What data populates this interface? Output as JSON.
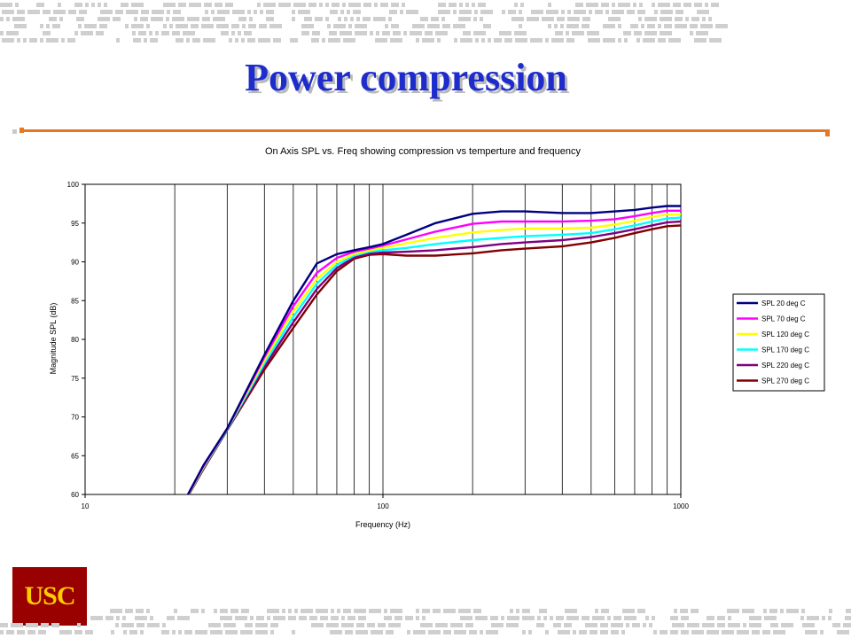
{
  "slide": {
    "title": "Power compression",
    "logo_text": "USC",
    "colors": {
      "title": "#1e2ccc",
      "accent_rule": "#e87722",
      "logo_bg": "#990000",
      "logo_text": "#ffcc00",
      "pattern": "#cfcfcf"
    }
  },
  "chart_data": {
    "type": "line",
    "title": "On Axis SPL vs. Freq showing compression vs temperture and frequency",
    "xlabel": "Frequency (Hz)",
    "ylabel": "Magnitude SPL (dB)",
    "x_scale": "log",
    "xlim": [
      10,
      1000
    ],
    "ylim": [
      60,
      100
    ],
    "x_ticks": [
      "10",
      "100",
      "1000"
    ],
    "y_ticks": [
      "60",
      "65",
      "70",
      "75",
      "80",
      "85",
      "90",
      "95",
      "100"
    ],
    "grid": "vertical log gridlines",
    "legend_position": "right",
    "x": [
      20,
      22,
      25,
      30,
      40,
      50,
      60,
      70,
      80,
      90,
      100,
      120,
      150,
      200,
      250,
      300,
      400,
      500,
      600,
      700,
      800,
      900,
      1000
    ],
    "series": [
      {
        "name": "SPL 20 deg C",
        "color": "#000080",
        "values": [
          57.5,
          59.8,
          63.8,
          68.5,
          78.0,
          85.0,
          89.8,
          91.0,
          91.5,
          91.9,
          92.3,
          93.5,
          95.0,
          96.2,
          96.5,
          96.5,
          96.3,
          96.3,
          96.5,
          96.7,
          97.0,
          97.2,
          97.2
        ]
      },
      {
        "name": "SPL 70 deg C",
        "color": "#ff00ff",
        "values": [
          57.5,
          59.8,
          63.7,
          68.5,
          77.7,
          84.3,
          88.6,
          90.5,
          91.3,
          91.7,
          92.1,
          92.9,
          93.9,
          94.9,
          95.2,
          95.2,
          95.2,
          95.3,
          95.5,
          95.9,
          96.3,
          96.6,
          96.6
        ]
      },
      {
        "name": "SPL 120 deg C",
        "color": "#ffff00",
        "values": [
          57.4,
          59.7,
          63.6,
          68.5,
          77.3,
          83.6,
          87.8,
          90.0,
          91.0,
          91.5,
          91.8,
          92.4,
          93.1,
          93.8,
          94.1,
          94.3,
          94.3,
          94.4,
          94.8,
          95.3,
          95.8,
          96.1,
          96.1
        ]
      },
      {
        "name": "SPL 170 deg C",
        "color": "#00ffff",
        "values": [
          57.4,
          59.7,
          63.5,
          68.4,
          76.9,
          82.9,
          87.2,
          89.6,
          90.8,
          91.3,
          91.5,
          91.8,
          92.3,
          92.8,
          93.1,
          93.3,
          93.5,
          93.7,
          94.2,
          94.7,
          95.2,
          95.6,
          95.7
        ]
      },
      {
        "name": "SPL 220 deg C",
        "color": "#800080",
        "values": [
          57.3,
          59.6,
          63.4,
          68.4,
          76.5,
          82.2,
          86.5,
          89.2,
          90.6,
          91.1,
          91.2,
          91.3,
          91.5,
          91.9,
          92.3,
          92.5,
          92.8,
          93.2,
          93.7,
          94.2,
          94.7,
          95.1,
          95.2
        ]
      },
      {
        "name": "SPL 270 deg C",
        "color": "#800000",
        "values": [
          57.3,
          59.6,
          63.3,
          68.3,
          76.1,
          81.5,
          85.8,
          88.8,
          90.4,
          90.9,
          91.0,
          90.8,
          90.8,
          91.1,
          91.5,
          91.7,
          92.0,
          92.5,
          93.1,
          93.7,
          94.2,
          94.6,
          94.7
        ]
      }
    ]
  }
}
